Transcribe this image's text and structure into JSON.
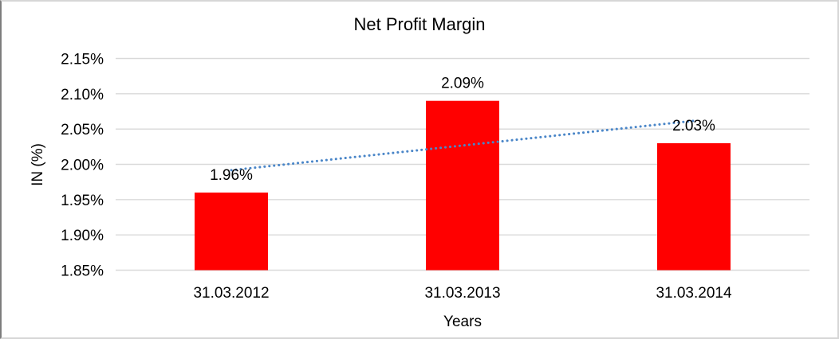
{
  "chart_data": {
    "type": "bar",
    "title": "Net Profit Margin",
    "categories": [
      "31.03.2012",
      "31.03.2013",
      "31.03.2014"
    ],
    "values": [
      1.96,
      2.09,
      2.03
    ],
    "data_labels": [
      "1.96%",
      "2.09%",
      "2.03%"
    ],
    "xlabel": "Years",
    "ylabel": "IN (%)",
    "ylim": [
      1.85,
      2.15
    ],
    "ytick_step": 0.05,
    "ytick_labels": [
      "1.85%",
      "1.90%",
      "1.95%",
      "2.00%",
      "2.05%",
      "2.10%",
      "2.15%"
    ],
    "grid": true,
    "legend": "none",
    "colors": {
      "bar": "#ff0000",
      "trendline": "#4a86c8",
      "gridline": "#d9d9d9",
      "text": "#000000"
    },
    "trendline": {
      "type": "linear",
      "style": "dotted",
      "y_start": 1.9917,
      "y_end": 2.0617
    }
  }
}
